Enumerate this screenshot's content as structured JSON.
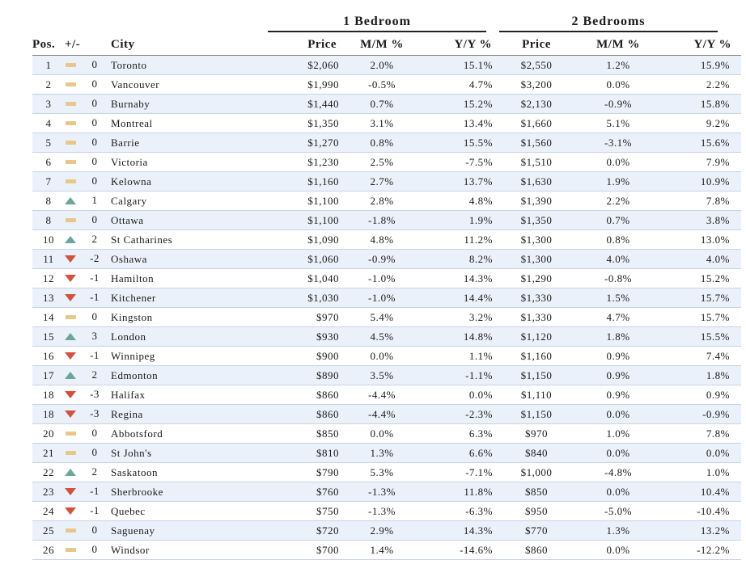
{
  "groups": {
    "one_bedroom": "1 Bedroom",
    "two_bedrooms": "2 Bedrooms"
  },
  "headers": {
    "pos": "Pos.",
    "change": "+/-",
    "city": "City",
    "price1": "Price",
    "mm1": "M/M %",
    "yy1": "Y/Y %",
    "price2": "Price",
    "mm2": "M/M %",
    "yy2": "Y/Y %"
  },
  "icon_colors": {
    "flat": "#e7c78c",
    "up": "#6aa79a",
    "down": "#d1533f"
  },
  "rows": [
    {
      "pos": "1",
      "trend": "flat",
      "change": "0",
      "city": "Toronto",
      "price1": "$2,060",
      "mm1": "2.0%",
      "yy1": "15.1%",
      "price2": "$2,550",
      "mm2": "1.2%",
      "yy2": "15.9%"
    },
    {
      "pos": "2",
      "trend": "flat",
      "change": "0",
      "city": "Vancouver",
      "price1": "$1,990",
      "mm1": "-0.5%",
      "yy1": "4.7%",
      "price2": "$3,200",
      "mm2": "0.0%",
      "yy2": "2.2%"
    },
    {
      "pos": "3",
      "trend": "flat",
      "change": "0",
      "city": "Burnaby",
      "price1": "$1,440",
      "mm1": "0.7%",
      "yy1": "15.2%",
      "price2": "$2,130",
      "mm2": "-0.9%",
      "yy2": "15.8%"
    },
    {
      "pos": "4",
      "trend": "flat",
      "change": "0",
      "city": "Montreal",
      "price1": "$1,350",
      "mm1": "3.1%",
      "yy1": "13.4%",
      "price2": "$1,660",
      "mm2": "5.1%",
      "yy2": "9.2%"
    },
    {
      "pos": "5",
      "trend": "flat",
      "change": "0",
      "city": "Barrie",
      "price1": "$1,270",
      "mm1": "0.8%",
      "yy1": "15.5%",
      "price2": "$1,560",
      "mm2": "-3.1%",
      "yy2": "15.6%"
    },
    {
      "pos": "6",
      "trend": "flat",
      "change": "0",
      "city": "Victoria",
      "price1": "$1,230",
      "mm1": "2.5%",
      "yy1": "-7.5%",
      "price2": "$1,510",
      "mm2": "0.0%",
      "yy2": "7.9%"
    },
    {
      "pos": "7",
      "trend": "flat",
      "change": "0",
      "city": "Kelowna",
      "price1": "$1,160",
      "mm1": "2.7%",
      "yy1": "13.7%",
      "price2": "$1,630",
      "mm2": "1.9%",
      "yy2": "10.9%"
    },
    {
      "pos": "8",
      "trend": "up",
      "change": "1",
      "city": "Calgary",
      "price1": "$1,100",
      "mm1": "2.8%",
      "yy1": "4.8%",
      "price2": "$1,390",
      "mm2": "2.2%",
      "yy2": "7.8%"
    },
    {
      "pos": "8",
      "trend": "flat",
      "change": "0",
      "city": "Ottawa",
      "price1": "$1,100",
      "mm1": "-1.8%",
      "yy1": "1.9%",
      "price2": "$1,350",
      "mm2": "0.7%",
      "yy2": "3.8%"
    },
    {
      "pos": "10",
      "trend": "up",
      "change": "2",
      "city": "St Catharines",
      "price1": "$1,090",
      "mm1": "4.8%",
      "yy1": "11.2%",
      "price2": "$1,300",
      "mm2": "0.8%",
      "yy2": "13.0%"
    },
    {
      "pos": "11",
      "trend": "down",
      "change": "-2",
      "city": "Oshawa",
      "price1": "$1,060",
      "mm1": "-0.9%",
      "yy1": "8.2%",
      "price2": "$1,300",
      "mm2": "4.0%",
      "yy2": "4.0%"
    },
    {
      "pos": "12",
      "trend": "down",
      "change": "-1",
      "city": "Hamilton",
      "price1": "$1,040",
      "mm1": "-1.0%",
      "yy1": "14.3%",
      "price2": "$1,290",
      "mm2": "-0.8%",
      "yy2": "15.2%"
    },
    {
      "pos": "13",
      "trend": "down",
      "change": "-1",
      "city": "Kitchener",
      "price1": "$1,030",
      "mm1": "-1.0%",
      "yy1": "14.4%",
      "price2": "$1,330",
      "mm2": "1.5%",
      "yy2": "15.7%"
    },
    {
      "pos": "14",
      "trend": "flat",
      "change": "0",
      "city": "Kingston",
      "price1": "$970",
      "mm1": "5.4%",
      "yy1": "3.2%",
      "price2": "$1,330",
      "mm2": "4.7%",
      "yy2": "15.7%"
    },
    {
      "pos": "15",
      "trend": "up",
      "change": "3",
      "city": "London",
      "price1": "$930",
      "mm1": "4.5%",
      "yy1": "14.8%",
      "price2": "$1,120",
      "mm2": "1.8%",
      "yy2": "15.5%"
    },
    {
      "pos": "16",
      "trend": "down",
      "change": "-1",
      "city": "Winnipeg",
      "price1": "$900",
      "mm1": "0.0%",
      "yy1": "1.1%",
      "price2": "$1,160",
      "mm2": "0.9%",
      "yy2": "7.4%"
    },
    {
      "pos": "17",
      "trend": "up",
      "change": "2",
      "city": "Edmonton",
      "price1": "$890",
      "mm1": "3.5%",
      "yy1": "-1.1%",
      "price2": "$1,150",
      "mm2": "0.9%",
      "yy2": "1.8%"
    },
    {
      "pos": "18",
      "trend": "down",
      "change": "-3",
      "city": "Halifax",
      "price1": "$860",
      "mm1": "-4.4%",
      "yy1": "0.0%",
      "price2": "$1,110",
      "mm2": "0.9%",
      "yy2": "0.9%"
    },
    {
      "pos": "18",
      "trend": "down",
      "change": "-3",
      "city": "Regina",
      "price1": "$860",
      "mm1": "-4.4%",
      "yy1": "-2.3%",
      "price2": "$1,150",
      "mm2": "0.0%",
      "yy2": "-0.9%"
    },
    {
      "pos": "20",
      "trend": "flat",
      "change": "0",
      "city": "Abbotsford",
      "price1": "$850",
      "mm1": "0.0%",
      "yy1": "6.3%",
      "price2": "$970",
      "mm2": "1.0%",
      "yy2": "7.8%"
    },
    {
      "pos": "21",
      "trend": "flat",
      "change": "0",
      "city": "St John's",
      "price1": "$810",
      "mm1": "1.3%",
      "yy1": "6.6%",
      "price2": "$840",
      "mm2": "0.0%",
      "yy2": "0.0%"
    },
    {
      "pos": "22",
      "trend": "up",
      "change": "2",
      "city": "Saskatoon",
      "price1": "$790",
      "mm1": "5.3%",
      "yy1": "-7.1%",
      "price2": "$1,000",
      "mm2": "-4.8%",
      "yy2": "1.0%"
    },
    {
      "pos": "23",
      "trend": "down",
      "change": "-1",
      "city": "Sherbrooke",
      "price1": "$760",
      "mm1": "-1.3%",
      "yy1": "11.8%",
      "price2": "$850",
      "mm2": "0.0%",
      "yy2": "10.4%"
    },
    {
      "pos": "24",
      "trend": "down",
      "change": "-1",
      "city": "Quebec",
      "price1": "$750",
      "mm1": "-1.3%",
      "yy1": "-6.3%",
      "price2": "$950",
      "mm2": "-5.0%",
      "yy2": "-10.4%"
    },
    {
      "pos": "25",
      "trend": "flat",
      "change": "0",
      "city": "Saguenay",
      "price1": "$720",
      "mm1": "2.9%",
      "yy1": "14.3%",
      "price2": "$770",
      "mm2": "1.3%",
      "yy2": "13.2%"
    },
    {
      "pos": "26",
      "trend": "flat",
      "change": "0",
      "city": "Windsor",
      "price1": "$700",
      "mm1": "1.4%",
      "yy1": "-14.6%",
      "price2": "$860",
      "mm2": "0.0%",
      "yy2": "-12.2%"
    }
  ]
}
